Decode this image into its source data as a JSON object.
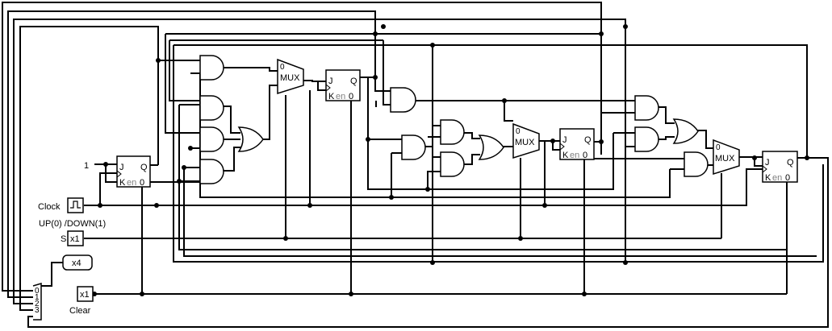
{
  "labels": {
    "one": "1",
    "clock": "Clock",
    "updown": "UP(0) /DOWN(1)",
    "s": "S",
    "clear": "Clear"
  },
  "pins": {
    "s_value": "x1",
    "clear_value": "x1",
    "bus_value": "x4",
    "splitter_bits": [
      "0",
      "1",
      "2",
      "3"
    ]
  },
  "flipflop": {
    "j": "J",
    "q": "Q",
    "k": "K",
    "en": "en",
    "zero": "0"
  },
  "mux": {
    "label": "MUX",
    "select": "0"
  }
}
